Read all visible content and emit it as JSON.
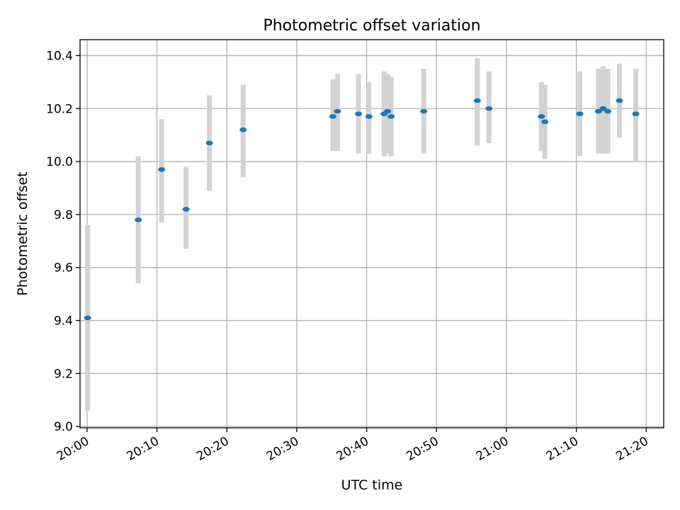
{
  "chart_data": {
    "type": "scatter",
    "title": "Photometric offset variation",
    "xlabel": "UTC time",
    "ylabel": "Photometric offset",
    "xlim": [
      "19:59:00",
      "21:22:30"
    ],
    "ylim": [
      8.995,
      10.46
    ],
    "grid": true,
    "x_ticks": [
      "20:00",
      "20:10",
      "20:20",
      "20:30",
      "20:40",
      "20:50",
      "21:00",
      "21:10",
      "21:20"
    ],
    "y_ticks": [
      "9.0",
      "9.2",
      "9.4",
      "9.6",
      "9.8",
      "10.0",
      "10.2",
      "10.4"
    ],
    "colors": {
      "marker": "#1f77b4",
      "error_bar": "#d3d3d3",
      "grid": "#b0b0b0"
    },
    "points": [
      {
        "x": "20:00:05",
        "y": 9.41,
        "lo": 9.06,
        "hi": 9.76
      },
      {
        "x": "20:07:20",
        "y": 9.78,
        "lo": 9.54,
        "hi": 10.02
      },
      {
        "x": "20:10:40",
        "y": 9.97,
        "lo": 9.77,
        "hi": 10.16
      },
      {
        "x": "20:14:10",
        "y": 9.82,
        "lo": 9.67,
        "hi": 9.98
      },
      {
        "x": "20:17:30",
        "y": 10.07,
        "lo": 9.89,
        "hi": 10.25
      },
      {
        "x": "20:22:20",
        "y": 10.12,
        "lo": 9.94,
        "hi": 10.29
      },
      {
        "x": "20:35:10",
        "y": 10.17,
        "lo": 10.04,
        "hi": 10.31
      },
      {
        "x": "20:35:50",
        "y": 10.19,
        "lo": 10.04,
        "hi": 10.33
      },
      {
        "x": "20:38:50",
        "y": 10.18,
        "lo": 10.03,
        "hi": 10.33
      },
      {
        "x": "20:40:20",
        "y": 10.17,
        "lo": 10.03,
        "hi": 10.3
      },
      {
        "x": "20:42:30",
        "y": 10.18,
        "lo": 10.02,
        "hi": 10.34
      },
      {
        "x": "20:43:00",
        "y": 10.19,
        "lo": 10.03,
        "hi": 10.33
      },
      {
        "x": "20:43:30",
        "y": 10.17,
        "lo": 10.02,
        "hi": 10.32
      },
      {
        "x": "20:48:10",
        "y": 10.19,
        "lo": 10.03,
        "hi": 10.35
      },
      {
        "x": "20:55:50",
        "y": 10.23,
        "lo": 10.06,
        "hi": 10.39
      },
      {
        "x": "20:57:30",
        "y": 10.2,
        "lo": 10.07,
        "hi": 10.34
      },
      {
        "x": "21:05:00",
        "y": 10.17,
        "lo": 10.04,
        "hi": 10.3
      },
      {
        "x": "21:05:30",
        "y": 10.15,
        "lo": 10.01,
        "hi": 10.29
      },
      {
        "x": "21:10:30",
        "y": 10.18,
        "lo": 10.02,
        "hi": 10.34
      },
      {
        "x": "21:13:10",
        "y": 10.19,
        "lo": 10.03,
        "hi": 10.35
      },
      {
        "x": "21:13:50",
        "y": 10.2,
        "lo": 10.03,
        "hi": 10.36
      },
      {
        "x": "21:14:30",
        "y": 10.19,
        "lo": 10.03,
        "hi": 10.35
      },
      {
        "x": "21:16:10",
        "y": 10.23,
        "lo": 10.09,
        "hi": 10.37
      },
      {
        "x": "21:18:30",
        "y": 10.18,
        "lo": 10.0,
        "hi": 10.35
      }
    ]
  }
}
